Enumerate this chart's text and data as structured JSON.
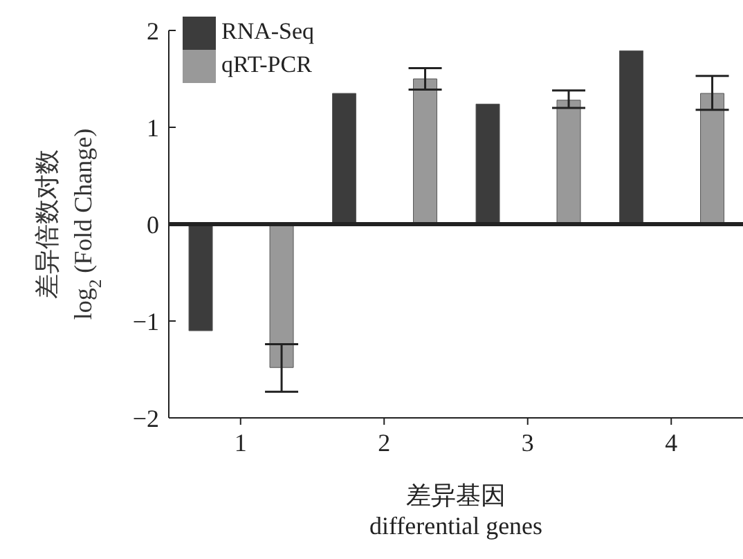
{
  "chart_data": {
    "type": "bar",
    "xlabel": "差异基因\ndifferential genes",
    "ylabel": "差异倍数对数\nlog$_{2}$ (Fold Change)",
    "categories": [
      "1",
      "2",
      "3",
      "4"
    ],
    "series": [
      {
        "name": "RNA-Seq",
        "color": "#3c3c3c",
        "values": [
          -1.1,
          1.35,
          1.24,
          1.79
        ]
      },
      {
        "name": "qRT-PCR",
        "color": "#999999",
        "values": [
          -1.48,
          1.5,
          1.28,
          1.35
        ],
        "errors": [
          [
            -1.73,
            -1.24
          ],
          [
            1.39,
            1.61
          ],
          [
            1.2,
            1.38
          ],
          [
            1.18,
            1.53
          ]
        ]
      }
    ],
    "ylim": [
      -2,
      2
    ],
    "yticks": [
      {
        "value": -2,
        "label": "−2"
      },
      {
        "value": -1,
        "label": "−1"
      },
      0,
      1,
      2
    ],
    "ref_lines": [
      {
        "axis": "y",
        "value": 0,
        "color": "#222222"
      }
    ],
    "grid": false,
    "legend": "top left"
  }
}
